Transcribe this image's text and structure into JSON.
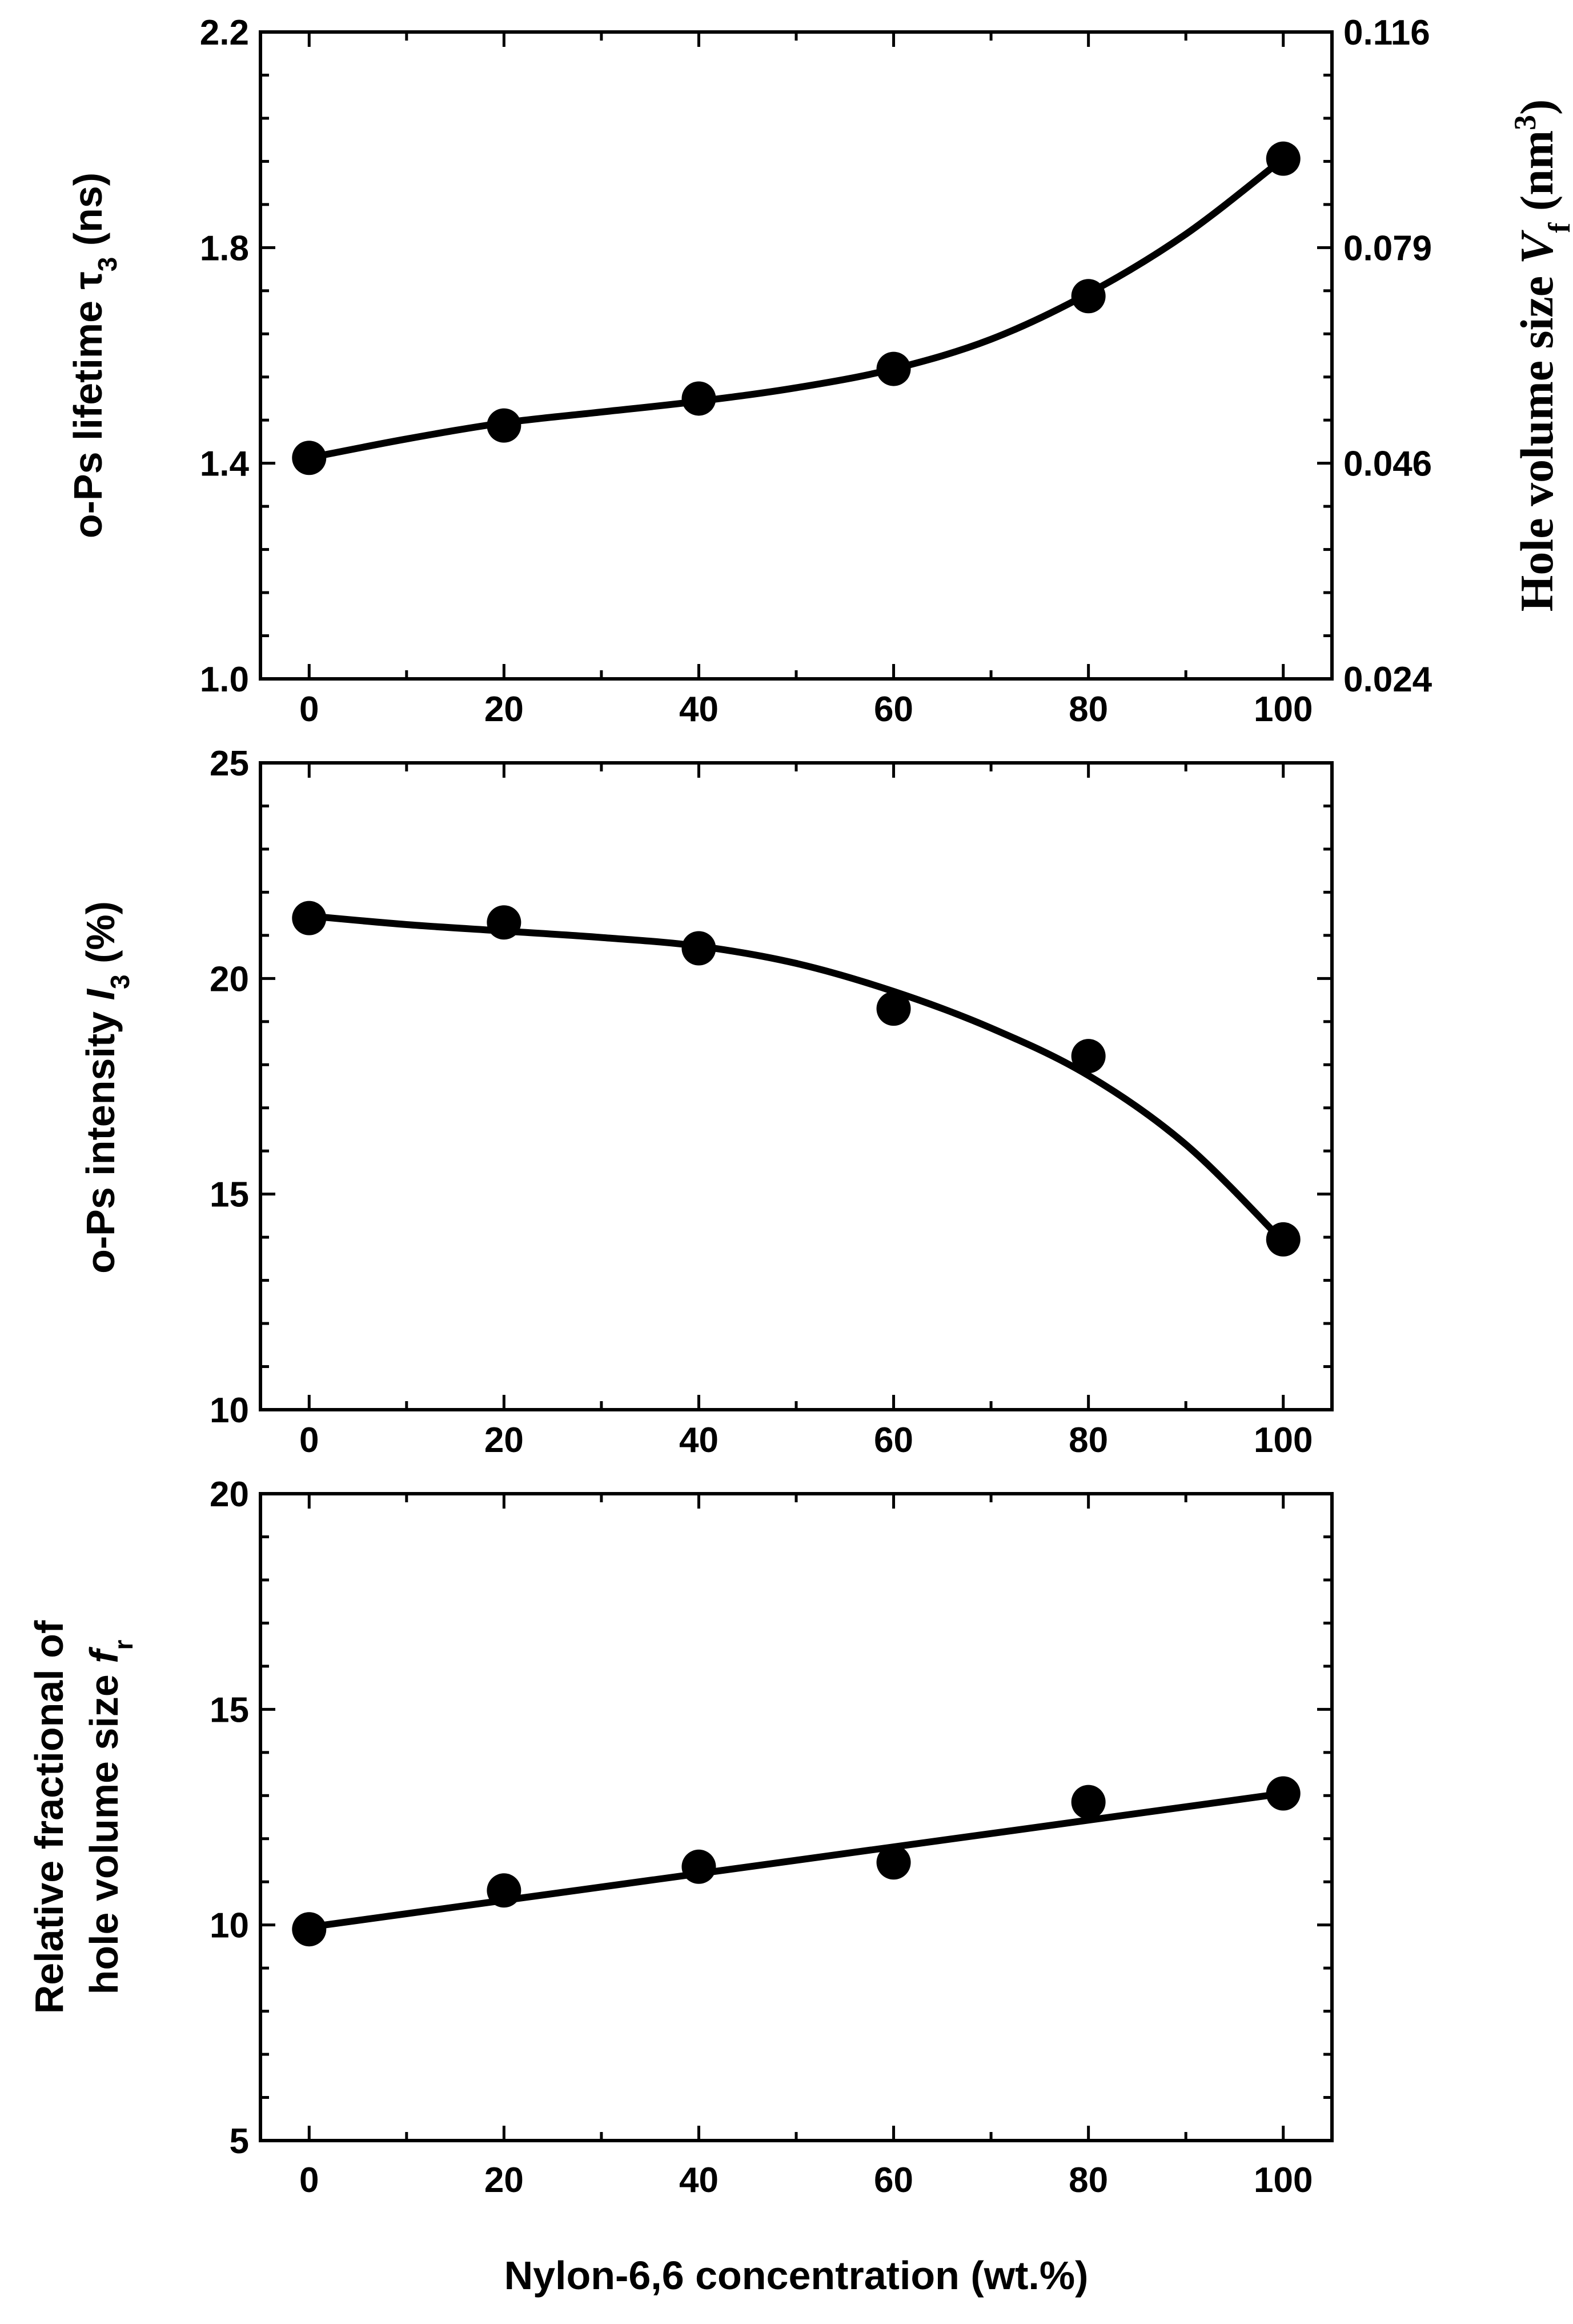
{
  "chart_data": [
    {
      "type": "scatter",
      "x": [
        0,
        20,
        40,
        60,
        80,
        100
      ],
      "values": [
        1.41,
        1.47,
        1.52,
        1.575,
        1.71,
        1.965
      ],
      "fit": [
        [
          0,
          1.41
        ],
        [
          10,
          1.445
        ],
        [
          20,
          1.475
        ],
        [
          30,
          1.495
        ],
        [
          40,
          1.515
        ],
        [
          50,
          1.54
        ],
        [
          60,
          1.575
        ],
        [
          70,
          1.63
        ],
        [
          80,
          1.715
        ],
        [
          90,
          1.825
        ],
        [
          100,
          1.965
        ]
      ],
      "xlim": [
        -5,
        105
      ],
      "ylim": [
        1.0,
        2.2
      ],
      "x_ticks": [
        "0",
        "20",
        "40",
        "60",
        "80",
        "100"
      ],
      "y_ticks": [
        "1.0",
        "1.4",
        "1.8",
        "2.2"
      ],
      "y2_ticks": [
        "0.024",
        "0.046",
        "0.079",
        "0.116"
      ],
      "ylabel": "o-Ps lifetime τ",
      "ylabel_sub": "3",
      "ylabel_unit": " (ns)",
      "y2label": "Hole volume size ",
      "y2label_var": "V",
      "y2label_sub": "f",
      "y2label_unit": " (nm",
      "y2label_sup": "3",
      "y2label_close": ")"
    },
    {
      "type": "scatter",
      "x": [
        0,
        20,
        40,
        60,
        80,
        100
      ],
      "values": [
        21.4,
        21.3,
        20.7,
        19.3,
        18.2,
        13.95
      ],
      "fit": [
        [
          0,
          21.45
        ],
        [
          10,
          21.25
        ],
        [
          20,
          21.1
        ],
        [
          30,
          20.95
        ],
        [
          40,
          20.75
        ],
        [
          50,
          20.35
        ],
        [
          60,
          19.7
        ],
        [
          70,
          18.85
        ],
        [
          80,
          17.75
        ],
        [
          90,
          16.15
        ],
        [
          100,
          13.9
        ]
      ],
      "xlim": [
        -5,
        105
      ],
      "ylim": [
        10,
        25
      ],
      "x_ticks": [
        "0",
        "20",
        "40",
        "60",
        "80",
        "100"
      ],
      "y_ticks": [
        "10",
        "15",
        "20",
        "25"
      ],
      "ylabel": "o-Ps intensity ",
      "ylabel_var": "I",
      "ylabel_sub": "3",
      "ylabel_unit": " (%)"
    },
    {
      "type": "scatter",
      "x": [
        0,
        20,
        40,
        60,
        80,
        100
      ],
      "values": [
        9.9,
        10.8,
        11.35,
        11.45,
        12.85,
        13.05
      ],
      "fit": [
        [
          0,
          9.95
        ],
        [
          100,
          13.05
        ]
      ],
      "xlim": [
        -5,
        105
      ],
      "ylim": [
        5,
        20
      ],
      "x_ticks": [
        "0",
        "20",
        "40",
        "60",
        "80",
        "100"
      ],
      "y_ticks": [
        "5",
        "10",
        "15",
        "20"
      ],
      "ylabel_line1": "Relative fractional of",
      "ylabel_line2": "hole volume size ",
      "ylabel_var": "f",
      "ylabel_sub": "r",
      "xlabel": "Nylon-6,6 concentration (wt.%)"
    }
  ]
}
